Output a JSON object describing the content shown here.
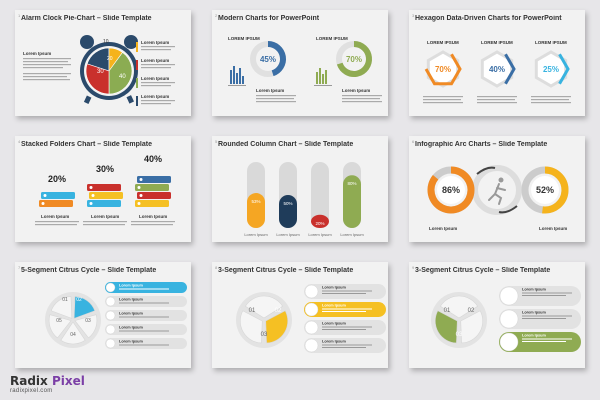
{
  "brand": {
    "name_part1": "Radix",
    "name_part2": "Pixel",
    "url": "radixpixel.com",
    "accent_color": "#7b3fa6"
  },
  "lorem_heading": "Lorem Ipsum",
  "lorem_caps": "LOREM IPSUM",
  "cards": [
    {
      "title": "Alarm Clock Pie-Chart – Slide Template",
      "chart_data": {
        "type": "pie",
        "values": [
          10,
          30,
          40,
          20
        ],
        "labels": [
          "10",
          "30",
          "40",
          "20"
        ],
        "colors": [
          "#f5b31c",
          "#c9302c",
          "#8bac52",
          "#2b4a6b"
        ]
      }
    },
    {
      "title": "Modern Charts for PowerPoint",
      "chart_data": {
        "type": "donut",
        "values": [
          45,
          70
        ],
        "labels": [
          "45%",
          "70%"
        ],
        "colors": [
          "#3a6ea5",
          "#8fab52"
        ]
      }
    },
    {
      "title": "Hexagon Data-Driven Charts for PowerPoint",
      "chart_data": {
        "type": "hexagon",
        "values": [
          70,
          40,
          25
        ],
        "labels": [
          "70%",
          "40%",
          "25%"
        ],
        "colors": [
          "#f08a24",
          "#3a6ea5",
          "#38b3e0"
        ]
      }
    },
    {
      "title": "Stacked Folders Chart – Slide Template",
      "chart_data": {
        "type": "bar",
        "values": [
          20,
          30,
          40
        ],
        "labels": [
          "20%",
          "30%",
          "40%"
        ]
      }
    },
    {
      "title": "Rounded Column Chart – Slide Template",
      "chart_data": {
        "type": "bar",
        "values": [
          53,
          50,
          20,
          80
        ],
        "labels": [
          "53%",
          "50%",
          "20%",
          "80%"
        ],
        "colors": [
          "#f5a623",
          "#1f3c5a",
          "#c9302c",
          "#8fab52"
        ]
      }
    },
    {
      "title": "Infographic Arc Charts – Slide Template",
      "chart_data": {
        "type": "donut",
        "values": [
          86,
          52
        ],
        "labels": [
          "86%",
          "52%"
        ],
        "colors": [
          "#f08a24",
          "#f5b31c"
        ]
      }
    },
    {
      "title": "5-Segment Citrus Cycle – Slide Template",
      "segments": [
        "01",
        "02",
        "03",
        "04",
        "05"
      ],
      "accent": "#38b3e0"
    },
    {
      "title": "3-Segment Citrus Cycle – Slide Template",
      "segments": [
        "01",
        "02",
        "03"
      ],
      "accent": "#f5c023"
    },
    {
      "title": "3-Segment Citrus Cycle – Slide Template",
      "segments": [
        "01",
        "02",
        "03"
      ],
      "accent": "#8fab52"
    }
  ]
}
